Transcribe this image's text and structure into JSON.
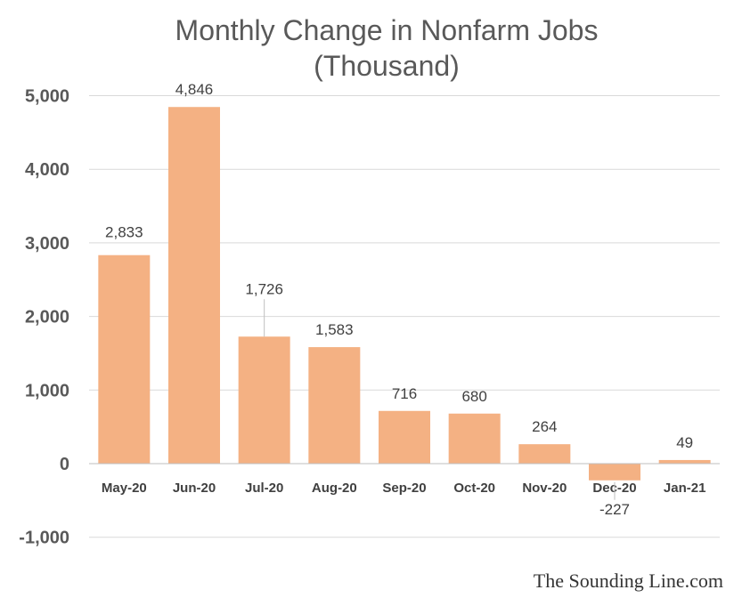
{
  "title": "Monthly Change in Nonfarm Jobs",
  "subtitle": "(Thousand)",
  "watermark": "The Sounding Line.com",
  "colors": {
    "bar": "#F4B183",
    "grid": "#d9d9d9",
    "axis": "#bfbfbf",
    "text": "#595959"
  },
  "chart_data": {
    "type": "bar",
    "title": "Monthly Change in Nonfarm Jobs (Thousand)",
    "xlabel": "",
    "ylabel": "",
    "categories": [
      "May-20",
      "Jun-20",
      "Jul-20",
      "Aug-20",
      "Sep-20",
      "Oct-20",
      "Nov-20",
      "Dec-20",
      "Jan-21"
    ],
    "values": [
      2833,
      4846,
      1726,
      1583,
      716,
      680,
      264,
      -227,
      49
    ],
    "data_labels": [
      "2,833",
      "4,846",
      "1,726",
      "1,583",
      "716",
      "680",
      "264",
      "-227",
      "49"
    ],
    "yticks": [
      5000,
      4000,
      3000,
      2000,
      1000,
      0,
      -1000
    ],
    "ytick_labels": [
      "5,000",
      "4,000",
      "3,000",
      "2,000",
      "1,000",
      "0",
      "-1,000"
    ],
    "ylim": [
      -1000,
      5000
    ],
    "grid": true,
    "legend": "none"
  }
}
